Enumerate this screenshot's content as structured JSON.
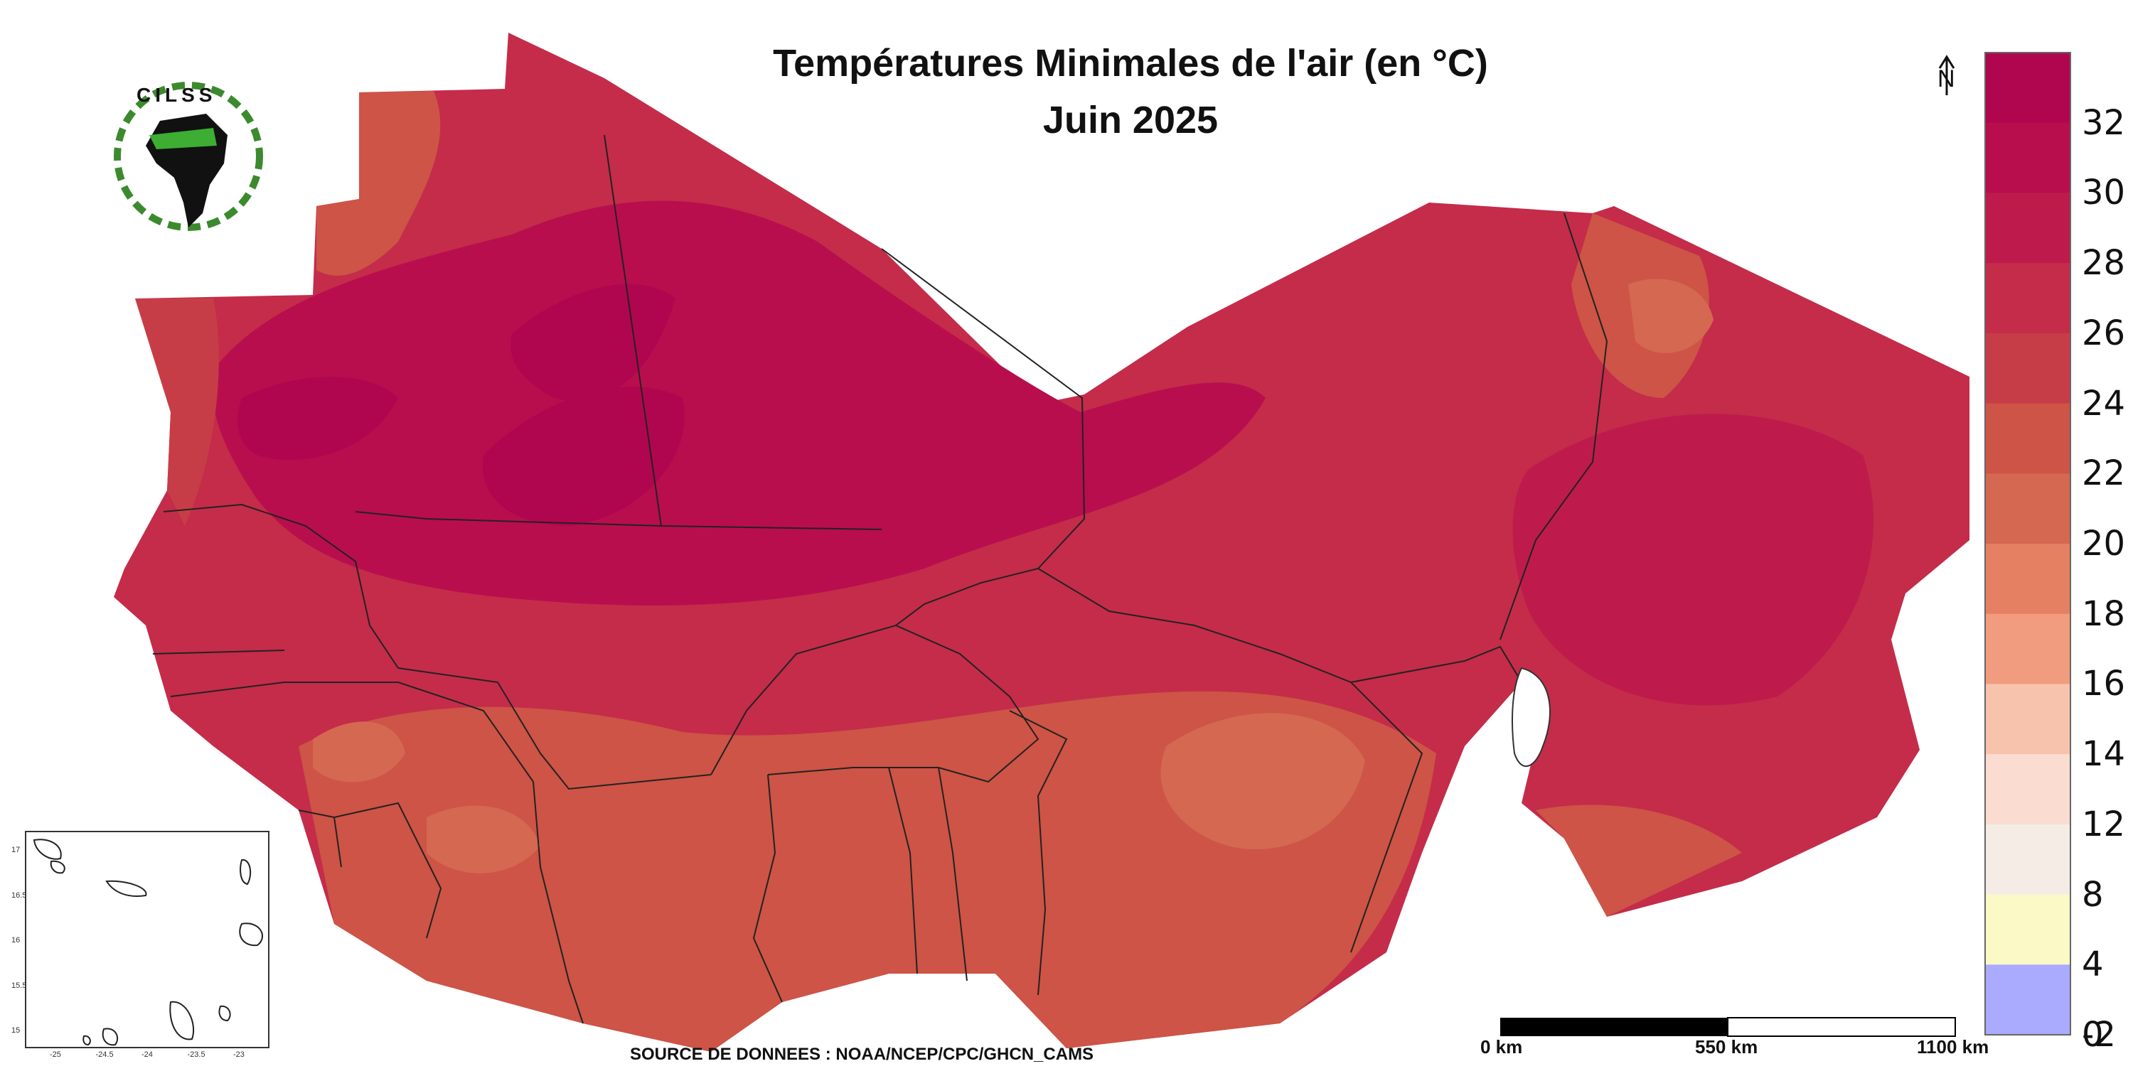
{
  "map": {
    "title_line1": "Températures Minimales de l'air (en °C)",
    "title_line2": "Juin 2025",
    "source": "SOURCE DE DONNEES : NOAA/NCEP/CPC/GHCN_CAMS",
    "logo_text": "CILSS",
    "north_arrow_label": "N"
  },
  "legend": {
    "bins": [
      {
        "label": "32",
        "color": "#b0064f"
      },
      {
        "label": "30",
        "color": "#b80e4e"
      },
      {
        "label": "28",
        "color": "#be1b4c"
      },
      {
        "label": "26",
        "color": "#c42c4a"
      },
      {
        "label": "24",
        "color": "#c73d47"
      },
      {
        "label": "22",
        "color": "#cd5446"
      },
      {
        "label": "20",
        "color": "#d46851"
      },
      {
        "label": "18",
        "color": "#e68063"
      },
      {
        "label": "16",
        "color": "#f19c7f"
      },
      {
        "label": "14",
        "color": "#f7c3ac"
      },
      {
        "label": "12",
        "color": "#fbdcd0"
      },
      {
        "label": "8",
        "color": "#f6ece6"
      },
      {
        "label": "4",
        "color": "#fbf9c6"
      },
      {
        "label": "0",
        "color": "#aaaaff"
      },
      {
        "label": "-2",
        "color": "#aaaaff"
      }
    ]
  },
  "scale_bar": {
    "labels": [
      "0 km",
      "550 km",
      "1100 km"
    ]
  },
  "inset": {
    "x_ticks": [
      "-25",
      "-24.5",
      "-24",
      "-23.5",
      "-23"
    ],
    "y_ticks": [
      "17",
      "16.5",
      "16",
      "15.5",
      "15"
    ]
  },
  "colors": {
    "hot_core": "#b0064f",
    "north": "#b80e4e",
    "sahel": "#c42c4a",
    "south": "#cd5446",
    "cool_patch": "#d46851",
    "border": "#222222"
  }
}
